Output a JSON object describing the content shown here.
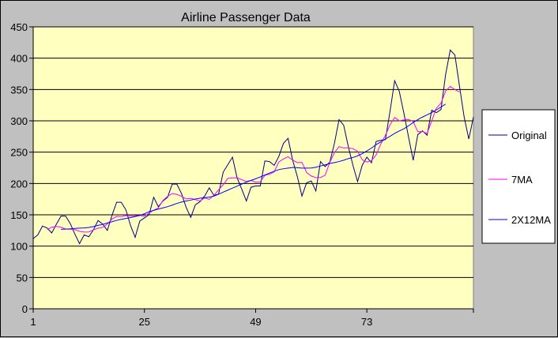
{
  "chart_data": {
    "type": "line",
    "title": "Airline Passenger Data",
    "xlabel": "",
    "ylabel": "",
    "ylim": [
      0,
      450
    ],
    "yticks": [
      0,
      50,
      100,
      150,
      200,
      250,
      300,
      350,
      400,
      450
    ],
    "xlim": [
      1,
      96
    ],
    "xticks": [
      1,
      25,
      49,
      73
    ],
    "grid": "horizontal",
    "legend": "right",
    "plot_background": "#ffffc0",
    "x_start": 1,
    "series": [
      {
        "name": "Original",
        "color": "#000080",
        "values": [
          112,
          118,
          132,
          129,
          121,
          135,
          148,
          148,
          136,
          119,
          104,
          118,
          115,
          126,
          141,
          135,
          125,
          149,
          170,
          170,
          158,
          133,
          114,
          140,
          145,
          150,
          178,
          163,
          172,
          178,
          199,
          199,
          184,
          162,
          146,
          166,
          171,
          180,
          193,
          181,
          183,
          218,
          230,
          242,
          209,
          191,
          172,
          194,
          196,
          196,
          236,
          235,
          229,
          243,
          264,
          272,
          237,
          211,
          180,
          201,
          204,
          188,
          235,
          227,
          234,
          264,
          302,
          293,
          259,
          229,
          203,
          229,
          242,
          233,
          267,
          269,
          270,
          315,
          364,
          347,
          312,
          274,
          237,
          278,
          284,
          277,
          317,
          313,
          318,
          374,
          413,
          405,
          355,
          306,
          271,
          306
        ]
      },
      {
        "name": "7MA",
        "color": "#ff00ff",
        "x_start": 4,
        "values": [
          126.4,
          130.1,
          131.4,
          130.1,
          127.3,
          127.0,
          126.3,
          123.7,
          122.4,
          122.6,
          126.0,
          128.7,
          130.1,
          135.4,
          143.0,
          147.4,
          147.1,
          148.7,
          148.1,
          148.6,
          149.1,
          147.6,
          152.7,
          157.4,
          161.0,
          172.9,
          179.4,
          183.9,
          182.6,
          179.6,
          175.4,
          176.1,
          174.3,
          172.1,
          177.0,
          174.6,
          181.1,
          189.7,
          197.9,
          208.1,
          208.9,
          209.1,
          206.1,
          203.2,
          205.0,
          202.0,
          202.7,
          213.1,
          214.7,
          218.6,
          234.3,
          239.1,
          242.7,
          237.3,
          233.2,
          233.7,
          217.6,
          211.9,
          209.4,
          209.6,
          213.1,
          233.6,
          249.1,
          258.7,
          256.6,
          256.9,
          255.6,
          251.4,
          237.9,
          234.3,
          236.6,
          245.4,
          263.0,
          276.9,
          293.6,
          305.4,
          300.1,
          301.4,
          302.3,
          298.6,
          282.9,
          282.9,
          280.0,
          299.6,
          320.3,
          328.1,
          347.4,
          355.0,
          349.9,
          346.0
        ]
      },
      {
        "name": "2X12MA",
        "color": "#0000ff",
        "x_start": 7,
        "values": [
          126.8,
          127.2,
          127.6,
          128.3,
          128.8,
          129.0,
          129.8,
          131.2,
          133.1,
          134.8,
          136.9,
          139.0,
          141.1,
          142.8,
          144.2,
          145.6,
          147.2,
          149.0,
          151.7,
          154.9,
          157.1,
          159.1,
          161.0,
          163.0,
          165.4,
          168.2,
          170.3,
          172.0,
          173.4,
          175.3,
          176.5,
          177.4,
          178.2,
          179.8,
          182.9,
          186.2,
          189.4,
          192.6,
          195.8,
          199.0,
          202.1,
          204.8,
          207.5,
          210.4,
          213.5,
          216.7,
          219.4,
          222.1,
          223.5,
          224.5,
          225.6,
          225.1,
          224.6,
          224.6,
          224.7,
          226.0,
          227.9,
          229.7,
          231.9,
          233.3,
          235.0,
          237.1,
          239.7,
          241.5,
          244.1,
          247.6,
          251.9,
          256.5,
          262.0,
          266.4,
          270.9,
          275.3,
          279.9,
          283.9,
          287.3,
          292.1,
          297.2,
          301.9,
          306.0,
          309.5,
          313.1,
          317.5,
          322.0,
          326.8
        ]
      }
    ]
  }
}
